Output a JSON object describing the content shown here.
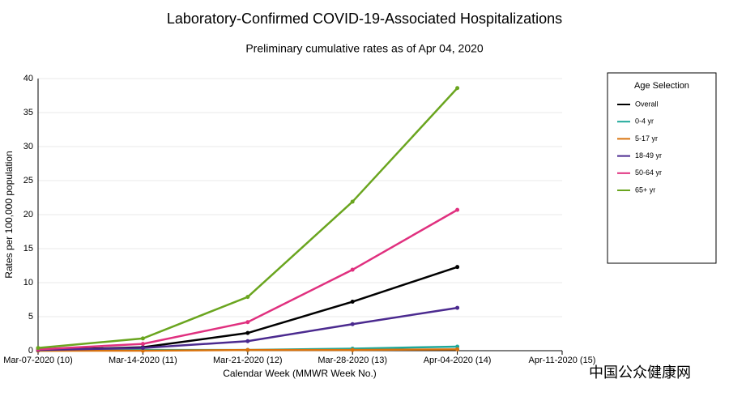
{
  "chart_data": {
    "type": "line",
    "title": "Laboratory-Confirmed COVID-19-Associated Hospitalizations",
    "subtitle": "Preliminary cumulative rates as of Apr 04, 2020",
    "x_label": "Calendar Week (MMWR Week No.)",
    "y_label": "Rates per 100,000 population",
    "categories": [
      "Mar-07-2020 (10)",
      "Mar-14-2020 (11)",
      "Mar-21-2020 (12)",
      "Mar-28-2020 (13)",
      "Apr-04-2020 (14)",
      "Apr-11-2020 (15)"
    ],
    "series": [
      {
        "name": "Overall",
        "color": "#000000",
        "values": [
          0.1,
          0.5,
          2.6,
          7.2,
          12.3,
          null
        ]
      },
      {
        "name": "0-4 yr",
        "color": "#1fa89a",
        "values": [
          0,
          0.1,
          0.1,
          0.3,
          0.6,
          null
        ]
      },
      {
        "name": "5-17 yr",
        "color": "#d9730d",
        "values": [
          0,
          0,
          0.1,
          0.1,
          0.2,
          null
        ]
      },
      {
        "name": "18-49 yr",
        "color": "#4b2a8f",
        "values": [
          0.1,
          0.4,
          1.4,
          3.9,
          6.3,
          null
        ]
      },
      {
        "name": "50-64 yr",
        "color": "#e0307f",
        "values": [
          0.2,
          1.0,
          4.2,
          11.9,
          20.7,
          null
        ]
      },
      {
        "name": "65+ yr",
        "color": "#6aa51f",
        "values": [
          0.4,
          1.8,
          7.9,
          21.9,
          38.6,
          null
        ]
      }
    ],
    "legend_title": "Age Selection",
    "legend_position": "right",
    "ylim": [
      0,
      40
    ],
    "yticks": [
      0,
      5,
      10,
      15,
      20,
      25,
      30,
      35,
      40
    ],
    "grid": true,
    "watermark": "中国公众健康网"
  }
}
